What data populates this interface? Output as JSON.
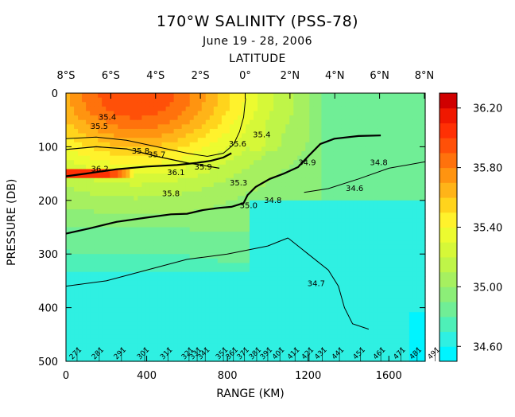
{
  "chart_data": {
    "type": "heatmap",
    "title": "170°W SALINITY (PSS-78)",
    "subtitle": "June 19 - 28, 2006",
    "top_axis_label": "LATITUDE",
    "xlabel": "RANGE (KM)",
    "ylabel": "PRESSURE (DB)",
    "xlim": [
      0,
      1780
    ],
    "ylim": [
      500,
      0
    ],
    "x_ticks": [
      "0",
      "400",
      "800",
      "1200",
      "1600"
    ],
    "x_tick_values": [
      0,
      400,
      800,
      1200,
      1600
    ],
    "y_ticks": [
      "0",
      "100",
      "200",
      "300",
      "400",
      "500"
    ],
    "y_tick_values": [
      0,
      100,
      200,
      300,
      400,
      500
    ],
    "lat_ticks": [
      "8°S",
      "6°S",
      "4°S",
      "2°S",
      "0°",
      "2°N",
      "4°N",
      "6°N",
      "8°N"
    ],
    "lat_tick_range_km": [
      0,
      222,
      444,
      666,
      888,
      1110,
      1332,
      1554,
      1776
    ],
    "colorbar_ticks": [
      "34.60",
      "35.00",
      "35.40",
      "35.80",
      "36.20"
    ],
    "colorbar_tick_values": [
      34.6,
      35.0,
      35.4,
      35.8,
      36.2
    ],
    "colorbar_range": [
      34.5,
      36.3
    ],
    "colorbar_step": 0.1,
    "colorbar_colors": [
      "#00f4ff",
      "#2ff0e2",
      "#4ef0b8",
      "#70ee96",
      "#8cee78",
      "#a6f060",
      "#bff548",
      "#d6f838",
      "#ecfb30",
      "#fff22c",
      "#ffd41c",
      "#ffb418",
      "#ff9410",
      "#ff720c",
      "#ff5008",
      "#ff3004",
      "#f01800",
      "#d00000"
    ],
    "contour_labels": [
      {
        "text": "35.4",
        "x": 205,
        "y": 45
      },
      {
        "text": "35.5",
        "x": 165,
        "y": 62
      },
      {
        "text": "35.7",
        "x": 450,
        "y": 115
      },
      {
        "text": "35.8",
        "x": 370,
        "y": 108
      },
      {
        "text": "36.2",
        "x": 168,
        "y": 142
      },
      {
        "text": "36.1",
        "x": 545,
        "y": 148
      },
      {
        "text": "35.9",
        "x": 680,
        "y": 138
      },
      {
        "text": "35.8",
        "x": 520,
        "y": 188
      },
      {
        "text": "35.6",
        "x": 850,
        "y": 95
      },
      {
        "text": "35.4",
        "x": 970,
        "y": 78
      },
      {
        "text": "35.3",
        "x": 855,
        "y": 168
      },
      {
        "text": "35.0",
        "x": 905,
        "y": 210
      },
      {
        "text": "34.8",
        "x": 1025,
        "y": 200
      },
      {
        "text": "34.9",
        "x": 1195,
        "y": 130
      },
      {
        "text": "34.8",
        "x": 1550,
        "y": 130
      },
      {
        "text": "34.6",
        "x": 1430,
        "y": 178
      },
      {
        "text": "34.7",
        "x": 1240,
        "y": 355
      }
    ],
    "station_labels": [
      {
        "text": "271",
        "x": 55
      },
      {
        "text": "281",
        "x": 165
      },
      {
        "text": "291",
        "x": 275
      },
      {
        "text": "301",
        "x": 390
      },
      {
        "text": "311",
        "x": 505
      },
      {
        "text": "321",
        "x": 610
      },
      {
        "text": "331",
        "x": 650
      },
      {
        "text": "341",
        "x": 690
      },
      {
        "text": "351",
        "x": 780
      },
      {
        "text": "361",
        "x": 830
      },
      {
        "text": "371",
        "x": 885
      },
      {
        "text": "381",
        "x": 945
      },
      {
        "text": "391",
        "x": 1000
      },
      {
        "text": "401",
        "x": 1060
      },
      {
        "text": "411",
        "x": 1135
      },
      {
        "text": "421",
        "x": 1205
      },
      {
        "text": "431",
        "x": 1270
      },
      {
        "text": "441",
        "x": 1355
      },
      {
        "text": "451",
        "x": 1460
      },
      {
        "text": "461",
        "x": 1560
      },
      {
        "text": "471",
        "x": 1660
      },
      {
        "text": "481",
        "x": 1740
      },
      {
        "text": "491",
        "x": 1830
      }
    ]
  }
}
